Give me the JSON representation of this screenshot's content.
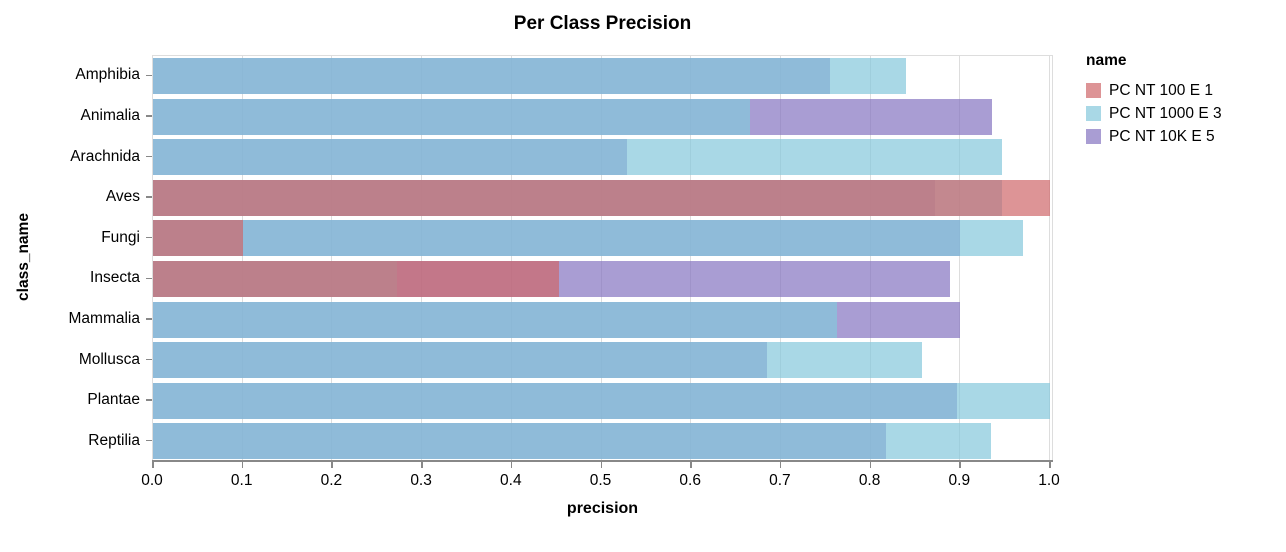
{
  "title": "Per Class Precision",
  "x_axis": {
    "label": "precision",
    "tick_labels": [
      "0.0",
      "0.1",
      "0.2",
      "0.3",
      "0.4",
      "0.5",
      "0.6",
      "0.7",
      "0.8",
      "0.9",
      "1.0"
    ]
  },
  "y_axis": {
    "label": "class_name"
  },
  "legend": {
    "title": "name",
    "items": [
      {
        "label": "PC NT 100 E 1",
        "color": "#ce6669"
      },
      {
        "label": "PC NT 1000 E 3",
        "color": "#85c8dc"
      },
      {
        "label": "PC NT 10K E 5",
        "color": "#8474c0"
      }
    ]
  },
  "colors": {
    "grid": "#dddddd",
    "axis": "#888888",
    "background": "#ffffff"
  },
  "chart_data": {
    "type": "bar",
    "orientation": "horizontal",
    "title": "Per Class Precision",
    "xlabel": "precision",
    "ylabel": "class_name",
    "xlim": [
      0.0,
      1.0
    ],
    "grid": true,
    "legend_position": "right",
    "bar_opacity": 0.7,
    "layer_order": [
      "PC NT 10K E 5",
      "PC NT 1000 E 3",
      "PC NT 100 E 1"
    ],
    "categories": [
      "Amphibia",
      "Animalia",
      "Arachnida",
      "Aves",
      "Fungi",
      "Insecta",
      "Mammalia",
      "Mollusca",
      "Plantae",
      "Reptilia"
    ],
    "series": [
      {
        "name": "PC NT 100 E 1",
        "color": "#ce6669",
        "values": [
          null,
          null,
          null,
          1.0,
          0.1,
          0.453,
          null,
          null,
          null,
          null
        ]
      },
      {
        "name": "PC NT 1000 E 3",
        "color": "#85c8dc",
        "values": [
          0.84,
          0.665,
          0.947,
          0.947,
          0.97,
          0.272,
          0.763,
          0.857,
          1.0,
          0.934
        ]
      },
      {
        "name": "PC NT 10K E 5",
        "color": "#8474c0",
        "values": [
          0.755,
          0.935,
          0.528,
          0.872,
          0.9,
          0.888,
          0.9,
          0.684,
          0.896,
          0.817
        ]
      }
    ]
  }
}
